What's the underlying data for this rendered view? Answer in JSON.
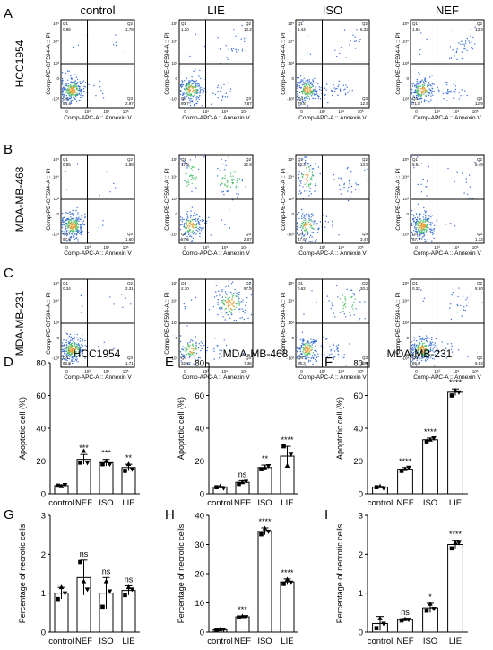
{
  "col_headers": [
    "control",
    "LIE",
    "ISO",
    "NEF"
  ],
  "rows": [
    {
      "letter": "A",
      "cell_line": "HCC1954",
      "panels": [
        {
          "q1": "0.86",
          "q2": "1.79",
          "q3": "2.97",
          "q4": "94.4"
        },
        {
          "q1": "1.20",
          "q2": "10.2",
          "q3": "7.87",
          "q4": "80.7"
        },
        {
          "q1": "1.44",
          "q2": "6.32",
          "q3": "12.5",
          "q4": "79.8"
        },
        {
          "q1": "1.94",
          "q2": "13.3",
          "q3": "12.9",
          "q4": "71.8"
        }
      ]
    },
    {
      "letter": "B",
      "cell_line": "MDA-MB-468",
      "panels": [
        {
          "q1": "0.55",
          "q2": "1.88",
          "q3": "1.60",
          "q4": "97.6"
        },
        {
          "q1": "17.5",
          "q2": "22.9",
          "q3": "2.07",
          "q4": "57.6"
        },
        {
          "q1": "30.3",
          "q2": "13.5",
          "q3": "3.47",
          "q4": "47.6"
        },
        {
          "q1": "5.51",
          "q2": "5.49",
          "q3": "1.32",
          "q4": "87.7"
        }
      ]
    },
    {
      "letter": "C",
      "cell_line": "MDA-MB-231",
      "panels": [
        {
          "q1": "0.34",
          "q2": "2.31",
          "q3": "1.71",
          "q4": "96.8"
        },
        {
          "q1": "2.30",
          "q2": "57.5",
          "q3": "7.36",
          "q4": "32.8"
        },
        {
          "q1": "0.62",
          "q2": "20.2",
          "q3": "12.9",
          "q4": "66.3"
        },
        {
          "q1": "0.32",
          "q2": "8.60",
          "q3": "5.53",
          "q4": "85.6"
        }
      ]
    }
  ],
  "flow_axes": {
    "y": "Comp-PE-CF594-A :: PI",
    "x": "Comp-APC-A :: Annexin V"
  },
  "quadrant_names": [
    "Q1",
    "Q2",
    "Q3",
    "Q4"
  ],
  "flow_ticks": [
    "10⁵",
    "10⁴",
    "10³",
    "0",
    "-10³",
    "10³",
    "10⁴",
    "10⁵"
  ],
  "chart_data": [
    {
      "letter": "D",
      "type": "bar",
      "title": "HCC1954",
      "ylabel": "Apoptotic cell (%)",
      "xlabel": "",
      "categories": [
        "control",
        "NEF",
        "ISO",
        "LIE"
      ],
      "values": [
        5,
        21,
        19,
        16
      ],
      "errors": [
        0.5,
        3,
        2,
        2
      ],
      "significance": [
        "",
        "***",
        "***",
        "**"
      ],
      "ylim": [
        0,
        80
      ],
      "yticks": [
        0,
        20,
        40,
        60,
        80
      ],
      "points": [
        [
          5,
          4.5,
          5.5
        ],
        [
          19,
          26,
          19
        ],
        [
          18,
          20,
          18
        ],
        [
          14,
          18,
          15
        ]
      ]
    },
    {
      "letter": "E",
      "type": "bar",
      "title": "MDA-MB-468",
      "ylabel": "Apoptotic cell (%)",
      "xlabel": "",
      "categories": [
        "control",
        "NEF",
        "ISO",
        "LIE"
      ],
      "values": [
        4,
        7,
        16,
        23
      ],
      "errors": [
        0.5,
        1,
        1.5,
        6
      ],
      "significance": [
        "",
        "ns",
        "**",
        "****"
      ],
      "ylim": [
        0,
        80
      ],
      "yticks": [
        0,
        20,
        40,
        60,
        80
      ],
      "points": [
        [
          4,
          4.5,
          3.5
        ],
        [
          6,
          7,
          7.5
        ],
        [
          15,
          16,
          17
        ],
        [
          29,
          17,
          24
        ]
      ]
    },
    {
      "letter": "F",
      "type": "bar",
      "title": "MDA-MB-231",
      "ylabel": "Apoptotic cell (%)",
      "xlabel": "",
      "categories": [
        "control",
        "NEF",
        "ISO",
        "LIE"
      ],
      "values": [
        4,
        15,
        33,
        62
      ],
      "errors": [
        0.5,
        1,
        1,
        2
      ],
      "significance": [
        "",
        "****",
        "****",
        "****"
      ],
      "ylim": [
        0,
        80
      ],
      "yticks": [
        0,
        20,
        40,
        60,
        80
      ],
      "points": [
        [
          4,
          4.5,
          3.5
        ],
        [
          14,
          15,
          16
        ],
        [
          32,
          33,
          34
        ],
        [
          60,
          63,
          62
        ]
      ]
    },
    {
      "letter": "G",
      "type": "bar",
      "title": "",
      "ylabel": "Percentage of necrotic cells",
      "xlabel": "",
      "categories": [
        "control",
        "NEF",
        "ISO",
        "LIE"
      ],
      "values": [
        1.0,
        1.4,
        1.0,
        1.07
      ],
      "errors": [
        0.15,
        0.45,
        0.4,
        0.12
      ],
      "significance": [
        "",
        "ns",
        "ns",
        "ns"
      ],
      "ylim": [
        0,
        3
      ],
      "yticks": [
        0,
        1,
        2,
        3
      ],
      "points": [
        [
          0.85,
          1.15,
          1.0
        ],
        [
          1.8,
          1.3,
          1.1
        ],
        [
          0.65,
          1.3,
          1.05
        ],
        [
          0.95,
          1.15,
          1.1
        ]
      ]
    },
    {
      "letter": "H",
      "type": "bar",
      "title": "",
      "ylabel": "Percentage of necrotic cells",
      "xlabel": "",
      "categories": [
        "control",
        "NEF",
        "ISO",
        "LIE"
      ],
      "values": [
        0.8,
        5.2,
        34.5,
        17.2
      ],
      "errors": [
        0.2,
        0.3,
        1.2,
        1.0
      ],
      "significance": [
        "",
        "***",
        "****",
        "****"
      ],
      "ylim": [
        0,
        40
      ],
      "yticks": [
        0,
        10,
        20,
        30,
        40
      ],
      "points": [
        [
          0.6,
          0.9,
          0.9
        ],
        [
          5.0,
          5.4,
          5.2
        ],
        [
          33.5,
          35.5,
          34.5
        ],
        [
          16.5,
          18,
          17
        ]
      ]
    },
    {
      "letter": "I",
      "type": "bar",
      "title": "",
      "ylabel": "Percentage of necrotic cells",
      "xlabel": "",
      "categories": [
        "control",
        "NEF",
        "ISO",
        "LIE"
      ],
      "values": [
        0.22,
        0.32,
        0.62,
        2.25
      ],
      "errors": [
        0.18,
        0.03,
        0.12,
        0.1
      ],
      "significance": [
        "",
        "ns",
        "*",
        "****"
      ],
      "ylim": [
        0,
        3
      ],
      "yticks": [
        0,
        1,
        2,
        3
      ],
      "points": [
        [
          0.1,
          0.35,
          0.22
        ],
        [
          0.3,
          0.33,
          0.32
        ],
        [
          0.55,
          0.72,
          0.6
        ],
        [
          2.15,
          2.3,
          2.3
        ]
      ]
    }
  ]
}
